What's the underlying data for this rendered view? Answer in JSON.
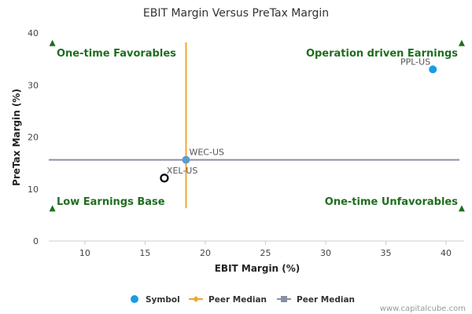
{
  "chart_data": {
    "type": "scatter",
    "title": "EBIT Margin Versus PreTax Margin",
    "xlabel": "EBIT Margin (%)",
    "ylabel": "PreTax Margin (%)",
    "xlim": [
      7,
      41.5
    ],
    "ylim": [
      0,
      40
    ],
    "xticks": [
      10,
      15,
      20,
      25,
      30,
      35,
      40
    ],
    "yticks": [
      0,
      10,
      20,
      30,
      40
    ],
    "points": [
      {
        "label": "PPL-US",
        "x": 38.9,
        "y": 33.0,
        "style": "filled",
        "color": "#1a9be6"
      },
      {
        "label": "WEC-US",
        "x": 18.4,
        "y": 15.6,
        "style": "filled",
        "color": "#5b9bd5"
      },
      {
        "label": "XEL-US",
        "x": 16.6,
        "y": 12.1,
        "style": "hollow",
        "color": "#000000"
      }
    ],
    "peer_median_x": 18.4,
    "peer_median_y": 15.6,
    "vline_range": [
      6.3,
      38.2
    ],
    "quadrant_labels": {
      "top_left": "One-time Favorables",
      "top_right": "Operation driven Earnings",
      "bottom_left": "Low Earnings Base",
      "bottom_right": "One-time Unfavorables"
    },
    "quadrant_markers": [
      {
        "x": 7.3,
        "y": 38
      },
      {
        "x": 41.3,
        "y": 38
      },
      {
        "x": 7.3,
        "y": 6.2
      },
      {
        "x": 41.3,
        "y": 6.2
      }
    ],
    "legend": [
      {
        "label": "Symbol",
        "color": "#1a9be6",
        "marker": "circle"
      },
      {
        "label": "Peer Median",
        "color": "#f4a62a",
        "marker": "diamond-line"
      },
      {
        "label": "Peer Median",
        "color": "#8a8fa3",
        "marker": "square-line"
      }
    ],
    "colors": {
      "vline": "#f4a62a",
      "hline": "#8a8fa3",
      "quadrant_text": "#1f6e1f",
      "axis": "#cccccc"
    },
    "grid": false,
    "legend_position": "bottom"
  },
  "credit": "www.capitalcube.com"
}
